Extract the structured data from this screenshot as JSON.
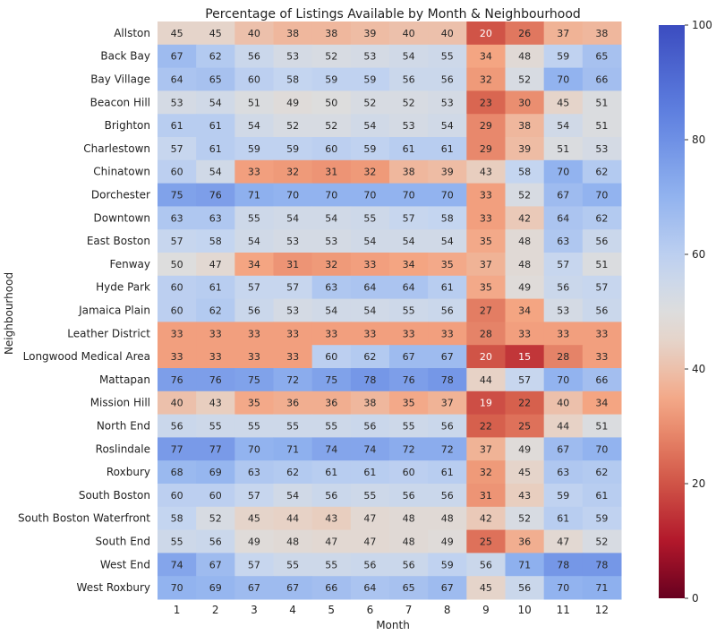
{
  "chart_data": {
    "type": "heatmap",
    "title": "Percentage of Listings Available by Month & Neighbourhood",
    "xlabel": "Month",
    "ylabel": "Neighbourhood",
    "x_categories": [
      "1",
      "2",
      "3",
      "4",
      "5",
      "6",
      "7",
      "8",
      "9",
      "10",
      "11",
      "12"
    ],
    "y_categories": [
      "Allston",
      "Back Bay",
      "Bay Village",
      "Beacon Hill",
      "Brighton",
      "Charlestown",
      "Chinatown",
      "Dorchester",
      "Downtown",
      "East Boston",
      "Fenway",
      "Hyde Park",
      "Jamaica Plain",
      "Leather District",
      "Longwood Medical Area",
      "Mattapan",
      "Mission Hill",
      "North End",
      "Roslindale",
      "Roxbury",
      "South Boston",
      "South Boston Waterfront",
      "South End",
      "West End",
      "West Roxbury"
    ],
    "values": [
      [
        45,
        45,
        40,
        38,
        38,
        39,
        40,
        40,
        20,
        26,
        37,
        38
      ],
      [
        67,
        62,
        56,
        53,
        52,
        53,
        54,
        55,
        34,
        48,
        59,
        65
      ],
      [
        64,
        65,
        60,
        58,
        59,
        59,
        56,
        56,
        32,
        52,
        70,
        66
      ],
      [
        53,
        54,
        51,
        49,
        50,
        52,
        52,
        53,
        23,
        30,
        45,
        51
      ],
      [
        61,
        61,
        54,
        52,
        52,
        54,
        53,
        54,
        29,
        38,
        54,
        51
      ],
      [
        57,
        61,
        59,
        59,
        60,
        59,
        61,
        61,
        29,
        39,
        51,
        53
      ],
      [
        60,
        54,
        33,
        32,
        31,
        32,
        38,
        39,
        43,
        58,
        70,
        62
      ],
      [
        75,
        76,
        71,
        70,
        70,
        70,
        70,
        70,
        33,
        52,
        67,
        70
      ],
      [
        63,
        63,
        55,
        54,
        54,
        55,
        57,
        58,
        33,
        42,
        64,
        62
      ],
      [
        57,
        58,
        54,
        53,
        53,
        54,
        54,
        54,
        35,
        48,
        63,
        56
      ],
      [
        50,
        47,
        34,
        31,
        32,
        33,
        34,
        35,
        37,
        48,
        57,
        51
      ],
      [
        60,
        61,
        57,
        57,
        63,
        64,
        64,
        61,
        35,
        49,
        56,
        57
      ],
      [
        60,
        62,
        56,
        53,
        54,
        54,
        55,
        56,
        27,
        34,
        53,
        56
      ],
      [
        33,
        33,
        33,
        33,
        33,
        33,
        33,
        33,
        28,
        33,
        33,
        33
      ],
      [
        33,
        33,
        33,
        33,
        60,
        62,
        67,
        67,
        20,
        15,
        28,
        33
      ],
      [
        76,
        76,
        75,
        72,
        75,
        78,
        76,
        78,
        44,
        57,
        70,
        66
      ],
      [
        40,
        43,
        35,
        36,
        36,
        38,
        35,
        37,
        19,
        22,
        40,
        34
      ],
      [
        56,
        55,
        55,
        55,
        55,
        56,
        55,
        56,
        22,
        25,
        44,
        51
      ],
      [
        77,
        77,
        70,
        71,
        74,
        74,
        72,
        72,
        37,
        49,
        67,
        70
      ],
      [
        68,
        69,
        63,
        62,
        61,
        61,
        60,
        61,
        32,
        45,
        63,
        62
      ],
      [
        60,
        60,
        57,
        54,
        56,
        55,
        56,
        56,
        31,
        43,
        59,
        61
      ],
      [
        58,
        52,
        45,
        44,
        43,
        47,
        48,
        48,
        42,
        52,
        61,
        59
      ],
      [
        55,
        56,
        49,
        48,
        47,
        47,
        48,
        49,
        25,
        36,
        47,
        52
      ],
      [
        74,
        67,
        57,
        55,
        55,
        56,
        56,
        59,
        56,
        71,
        78,
        78
      ],
      [
        70,
        69,
        67,
        67,
        66,
        64,
        65,
        67,
        45,
        56,
        70,
        71
      ]
    ],
    "colorbar": {
      "min": 0,
      "max": 100,
      "ticks": [
        "0",
        "20",
        "40",
        "60",
        "80",
        "100"
      ],
      "colormap": "coolwarm_r"
    }
  }
}
